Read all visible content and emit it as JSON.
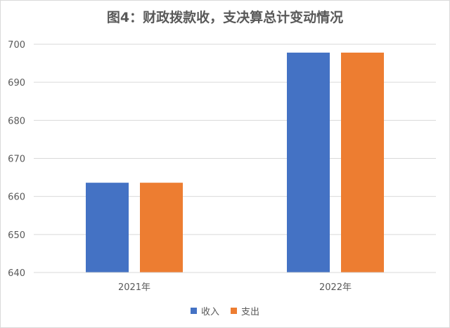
{
  "chart_data": {
    "type": "bar",
    "title": "图4：财政拨款收，支决算总计变动情况",
    "categories": [
      "2021年",
      "2022年"
    ],
    "series": [
      {
        "name": "收入",
        "values": [
          663.6,
          697.8
        ],
        "color": "#4472C4"
      },
      {
        "name": "支出",
        "values": [
          663.6,
          697.8
        ],
        "color": "#ED7D31"
      }
    ],
    "ylim": [
      640,
      700
    ],
    "yticks": [
      640,
      650,
      660,
      670,
      680,
      690,
      700
    ],
    "grid": true,
    "legend": "bottom"
  }
}
